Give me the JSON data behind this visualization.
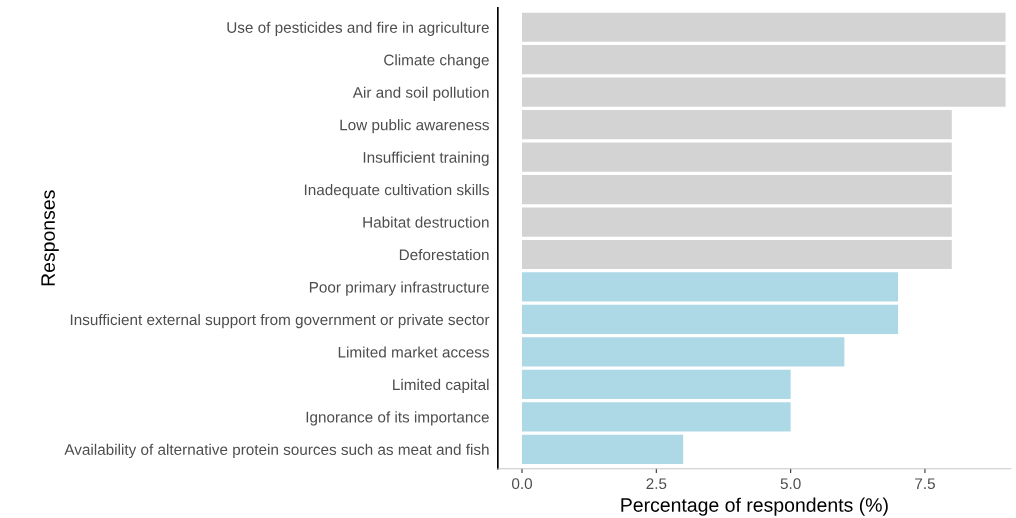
{
  "chart_data": {
    "type": "bar",
    "orientation": "horizontal",
    "xlabel": "Percentage of respondents (%)",
    "ylabel": "Responses",
    "categories": [
      "Use of pesticides and fire in agriculture",
      "Climate change",
      "Air and soil pollution",
      "Low public awareness",
      "Insufficient training",
      "Inadequate cultivation skills",
      "Habitat destruction",
      "Deforestation",
      "Poor primary infrastructure",
      "Insufficient external support from government or private sector",
      "Limited market access",
      "Limited capital",
      "Ignorance of its importance",
      "Availability of alternative protein sources such as meat and fish"
    ],
    "values": [
      9,
      9,
      9,
      8,
      8,
      8,
      8,
      8,
      7,
      7,
      6,
      5,
      5,
      3
    ],
    "colors": [
      "#d3d3d3",
      "#d3d3d3",
      "#d3d3d3",
      "#d3d3d3",
      "#d3d3d3",
      "#d3d3d3",
      "#d3d3d3",
      "#d3d3d3",
      "#add8e6",
      "#add8e6",
      "#add8e6",
      "#add8e6",
      "#add8e6",
      "#add8e6"
    ],
    "xlim": [
      -0.45,
      9.1
    ],
    "xticks": [
      {
        "value": 0,
        "label": "0.0"
      },
      {
        "value": 2.5,
        "label": "2.5"
      },
      {
        "value": 5,
        "label": "5.0"
      },
      {
        "value": 7.5,
        "label": "7.5"
      }
    ],
    "grid": false,
    "legend": false
  }
}
